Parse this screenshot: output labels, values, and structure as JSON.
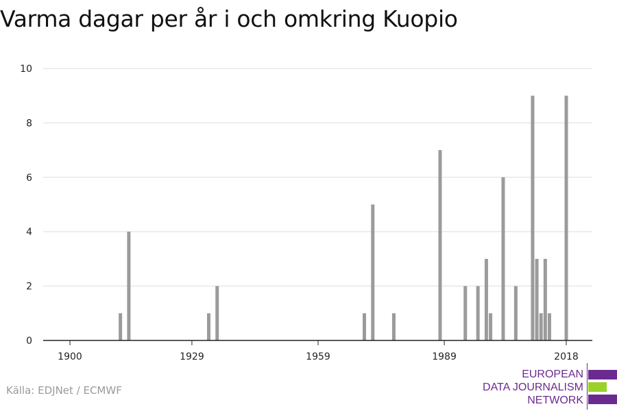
{
  "title": "Varma dagar per år i och omkring Kuopio",
  "source": "Källa: EDJNet / ECMWF",
  "logo": {
    "lines": [
      "EUROPEAN",
      "DATA JOURNALISM",
      "NETWORK"
    ],
    "color": "#6b2a8f",
    "accent": "#9ad12b"
  },
  "colors": {
    "bar": "#9b9b9b",
    "grid": "#dddddd",
    "axis": "#222222"
  },
  "chart_data": {
    "type": "bar",
    "title": "Varma dagar per år i och omkring Kuopio",
    "xlabel": "",
    "ylabel": "",
    "xlim": [
      1900,
      2018
    ],
    "ylim": [
      0,
      10
    ],
    "grid": true,
    "x_ticks": [
      1900,
      1929,
      1959,
      1989,
      2018
    ],
    "y_ticks": [
      0,
      2,
      4,
      6,
      8,
      10
    ],
    "x": [
      1912,
      1914,
      1933,
      1935,
      1970,
      1972,
      1977,
      1988,
      1994,
      1997,
      1999,
      2000,
      2003,
      2006,
      2010,
      2011,
      2012,
      2013,
      2014,
      2018
    ],
    "values": [
      1,
      4,
      1,
      2,
      1,
      5,
      1,
      7,
      2,
      2,
      3,
      1,
      6,
      2,
      9,
      3,
      1,
      3,
      1,
      9
    ]
  }
}
